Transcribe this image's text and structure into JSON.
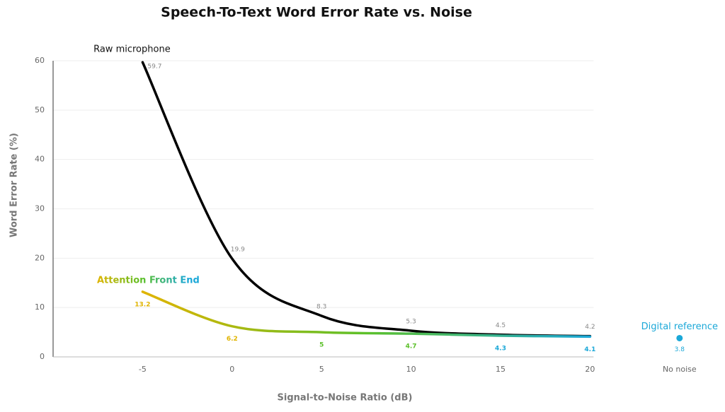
{
  "chart_data": {
    "type": "line",
    "title": "Speech-To-Text Word Error Rate vs. Noise",
    "x_label": "Signal-to-Noise Ratio (dB)",
    "y_label": "Word Error Rate (%)",
    "categories": [
      "-5",
      "0",
      "5",
      "10",
      "15",
      "20",
      "No noise"
    ],
    "ylim": [
      0,
      60
    ],
    "yticks": [
      0,
      10,
      20,
      30,
      40,
      50,
      60
    ],
    "grid": true,
    "series": [
      {
        "name": "Raw microphone",
        "color": "#000000",
        "values": [
          59.7,
          19.9,
          8.3,
          5.3,
          4.5,
          4.2,
          null
        ]
      },
      {
        "name": "Attention Front End",
        "colors": [
          "#e0b400",
          "#5cc02a",
          "#1ba8d8"
        ],
        "values": [
          13.2,
          6.2,
          5,
          4.7,
          4.3,
          4.1,
          null
        ]
      },
      {
        "name": "Digital reference",
        "color": "#1ba8d8",
        "values": [
          null,
          null,
          null,
          null,
          null,
          null,
          3.8
        ]
      }
    ]
  }
}
